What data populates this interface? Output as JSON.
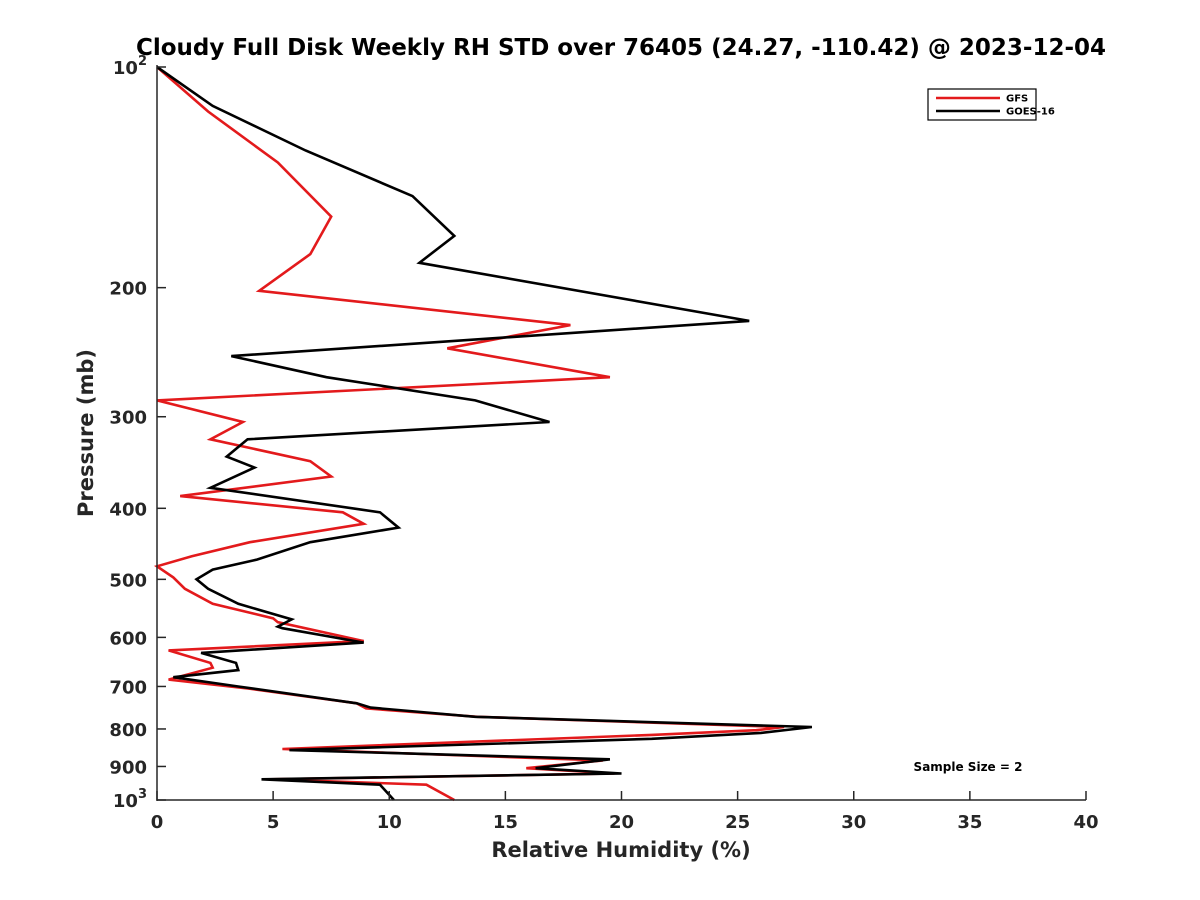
{
  "chart_data": {
    "type": "line",
    "title": "Cloudy Full Disk Weekly RH STD over 76405 (24.27, -110.42) @ 2023-12-04",
    "xlabel": "Relative Humidity (%)",
    "ylabel": "Pressure (mb)",
    "xlim": [
      0,
      40
    ],
    "ylim": [
      100,
      1000
    ],
    "y_scale": "log",
    "y_reversed": true,
    "grid": false,
    "legend_position": "top-right",
    "x_ticks": [
      "0",
      "5",
      "10",
      "15",
      "20",
      "25",
      "30",
      "35",
      "40"
    ],
    "y_ticks": [
      {
        "value": 100,
        "base": "10",
        "exp": "2"
      },
      {
        "value": 200,
        "label": "200"
      },
      {
        "value": 300,
        "label": "300"
      },
      {
        "value": 400,
        "label": "400"
      },
      {
        "value": 500,
        "label": "500"
      },
      {
        "value": 600,
        "label": "600"
      },
      {
        "value": 700,
        "label": "700"
      },
      {
        "value": 800,
        "label": "800"
      },
      {
        "value": 900,
        "label": "900"
      },
      {
        "value": 1000,
        "base": "10",
        "exp": "3"
      }
    ],
    "series": [
      {
        "name": "GFS",
        "color": "#e31a1c",
        "points": [
          [
            0.0,
            100
          ],
          [
            2.2,
            115
          ],
          [
            5.2,
            135
          ],
          [
            7.5,
            160
          ],
          [
            6.6,
            180
          ],
          [
            4.4,
            202
          ],
          [
            17.8,
            225
          ],
          [
            12.5,
            242
          ],
          [
            19.5,
            265
          ],
          [
            0.0,
            285
          ],
          [
            3.7,
            305
          ],
          [
            2.3,
            322
          ],
          [
            6.6,
            345
          ],
          [
            7.5,
            362
          ],
          [
            1.0,
            385
          ],
          [
            8.0,
            405
          ],
          [
            8.9,
            420
          ],
          [
            4.0,
            445
          ],
          [
            1.5,
            465
          ],
          [
            0.0,
            480
          ],
          [
            0.7,
            497
          ],
          [
            1.2,
            515
          ],
          [
            2.4,
            540
          ],
          [
            5.0,
            565
          ],
          [
            5.2,
            572
          ],
          [
            8.9,
            607
          ],
          [
            0.5,
            625
          ],
          [
            2.3,
            650
          ],
          [
            2.4,
            660
          ],
          [
            0.5,
            685
          ],
          [
            4.0,
            705
          ],
          [
            8.6,
            738
          ],
          [
            9.0,
            750
          ],
          [
            13.8,
            770
          ],
          [
            27.0,
            795
          ],
          [
            25.8,
            803
          ],
          [
            21.3,
            815
          ],
          [
            5.4,
            852
          ],
          [
            19.2,
            883
          ],
          [
            15.9,
            905
          ],
          [
            19.7,
            920
          ],
          [
            4.9,
            937
          ],
          [
            11.6,
            953
          ],
          [
            12.8,
            1000
          ]
        ]
      },
      {
        "name": "GOES-16",
        "color": "#000000",
        "points": [
          [
            0.0,
            100
          ],
          [
            2.4,
            113
          ],
          [
            6.4,
            130
          ],
          [
            11.0,
            150
          ],
          [
            12.8,
            170
          ],
          [
            11.3,
            185
          ],
          [
            25.5,
            222
          ],
          [
            3.2,
            248
          ],
          [
            7.3,
            265
          ],
          [
            13.7,
            285
          ],
          [
            16.9,
            305
          ],
          [
            3.9,
            322
          ],
          [
            3.0,
            340
          ],
          [
            4.2,
            352
          ],
          [
            2.3,
            375
          ],
          [
            9.6,
            405
          ],
          [
            10.4,
            425
          ],
          [
            6.6,
            445
          ],
          [
            4.3,
            470
          ],
          [
            2.4,
            485
          ],
          [
            1.7,
            500
          ],
          [
            2.2,
            515
          ],
          [
            3.5,
            540
          ],
          [
            5.8,
            567
          ],
          [
            5.2,
            580
          ],
          [
            5.4,
            583
          ],
          [
            8.9,
            610
          ],
          [
            1.9,
            630
          ],
          [
            3.4,
            650
          ],
          [
            3.5,
            665
          ],
          [
            0.7,
            680
          ],
          [
            3.5,
            700
          ],
          [
            8.6,
            738
          ],
          [
            9.2,
            748
          ],
          [
            13.7,
            770
          ],
          [
            28.2,
            795
          ],
          [
            26.0,
            810
          ],
          [
            21.3,
            825
          ],
          [
            5.7,
            855
          ],
          [
            19.5,
            880
          ],
          [
            16.3,
            905
          ],
          [
            20.0,
            920
          ],
          [
            4.5,
            937
          ],
          [
            9.6,
            953
          ],
          [
            10.2,
            1000
          ]
        ]
      }
    ],
    "annotation": "Sample Size = 2"
  }
}
